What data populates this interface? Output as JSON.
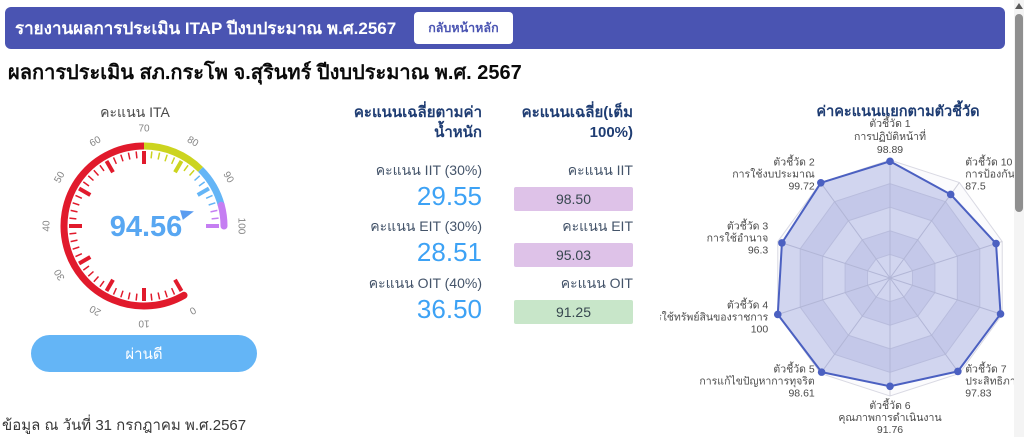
{
  "header": {
    "title": "รายงานผลการประเมิน ITAP ปีงบประมาณ พ.ศ.2567",
    "back_button": "กลับหน้าหลัก"
  },
  "page": {
    "title": "ผลการประเมิน สภ.กระโพ จ.สุรินทร์ ปีงบประมาณ พ.ศ. 2567",
    "footnote": "ข้อมูล ณ วันที่ 31 กรกฎาคม พ.ศ.2567"
  },
  "gauge_panel": {
    "status_label": "ผ่านดี"
  },
  "weighted": {
    "header": "คะแนนเฉลี่ยตามค่าน้ำหนัก",
    "rows": [
      {
        "label": "คะแนน IIT (30%)",
        "value": "29.55"
      },
      {
        "label": "คะแนน EIT (30%)",
        "value": "28.51"
      },
      {
        "label": "คะแนน OIT (40%)",
        "value": "36.50"
      }
    ]
  },
  "full": {
    "header": "คะแนนเฉลี่ย(เต็ม 100%)",
    "rows": [
      {
        "label": "คะแนน IIT",
        "value": "98.50",
        "color": "#dec2e8"
      },
      {
        "label": "คะแนน EIT",
        "value": "95.03",
        "color": "#dec2e8"
      },
      {
        "label": "คะแนน OIT",
        "value": "91.25",
        "color": "#c8e6c9"
      }
    ]
  },
  "colors": {
    "header_bg": "#4a54b2",
    "accent_blue": "#64b5f6",
    "heading_navy": "#1f3d73",
    "value_blue": "#3da2f5"
  },
  "chart_data": [
    {
      "type": "gauge",
      "title": "คะแนน ITA",
      "value": 94.56,
      "min": 0,
      "max": 100,
      "start_angle": 300,
      "end_angle": 0,
      "axis_tick_labels": [
        0,
        10,
        20,
        30,
        40,
        50,
        60,
        70,
        80,
        90,
        100
      ],
      "zones": [
        {
          "from": 0,
          "to": 70,
          "color": "#e11a2c"
        },
        {
          "from": 70,
          "to": 85,
          "color": "#ccd41f"
        },
        {
          "from": 85,
          "to": 95,
          "color": "#64b5f6"
        },
        {
          "from": 95,
          "to": 100,
          "color": "#c57ef2"
        }
      ],
      "value_color": "#58a7f2",
      "pointer_color": "#5b9cf0"
    },
    {
      "type": "radar",
      "title": "ค่าคะแนนแยกตามตัวชี้วัด",
      "max": 100,
      "rings": 5,
      "line_color": "#4b60c1",
      "fill_color": "rgba(99,114,203,0.28)",
      "indicators": [
        {
          "name": "ตัวชี้วัด 1",
          "desc": "การปฏิบัติหน้าที่",
          "value": 98.89,
          "label_visible": true
        },
        {
          "name": "ตัวชี้วัด 2",
          "desc": "การใช้งบประมาณ",
          "value": 99.72,
          "label_visible": true
        },
        {
          "name": "ตัวชี้วัด 3",
          "desc": "การใช้อำนาจ",
          "value": 96.3,
          "label_visible": true
        },
        {
          "name": "ตัวชี้วัด 4",
          "desc": "การใช้ทรัพย์สินของราชการ",
          "value": 100,
          "label_visible": true
        },
        {
          "name": "ตัวชี้วัด 5",
          "desc": "การแก้ไขปัญหาการทุจริต",
          "value": 98.61,
          "label_visible": true
        },
        {
          "name": "ตัวชี้วัด 6",
          "desc": "คุณภาพการดำเนินงาน",
          "value": 91.76,
          "label_visible": true
        },
        {
          "name": "ตัวชี้วัด 7",
          "desc": "ประสิทธิภาพการสื่อสาร",
          "value": 97.83,
          "label_visible": true
        },
        {
          "name": "",
          "desc": "",
          "value": 98.5,
          "label_visible": false
        },
        {
          "name": "",
          "desc": "",
          "value": 94.5,
          "label_visible": false
        },
        {
          "name": "ตัวชี้วัด 10",
          "desc": "การป้องกันการทุจริต",
          "value": 87.5,
          "label_visible": true
        }
      ]
    }
  ]
}
